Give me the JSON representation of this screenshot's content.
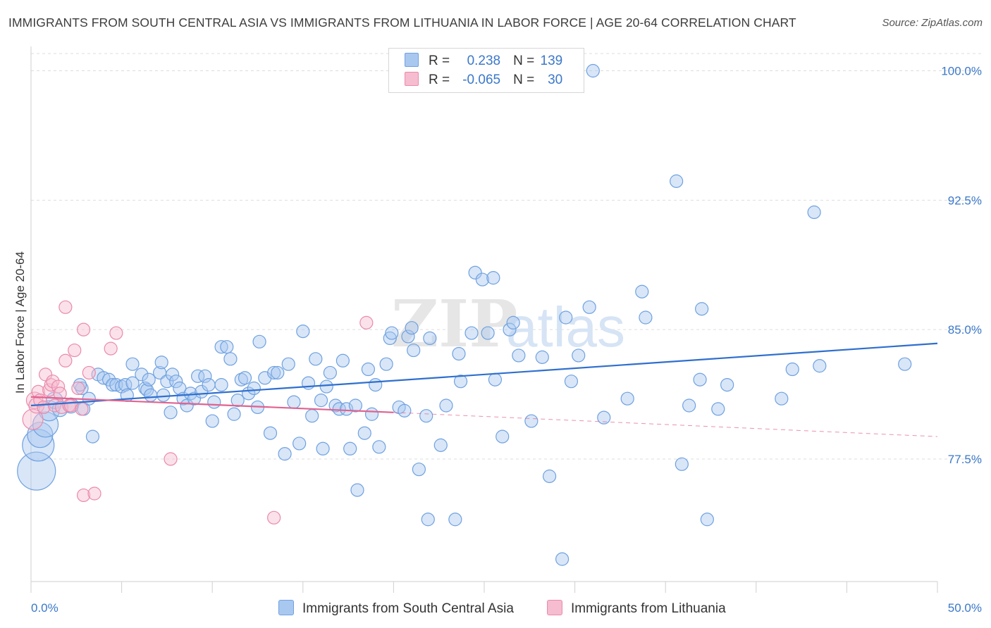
{
  "header": {
    "title": "IMMIGRANTS FROM SOUTH CENTRAL ASIA VS IMMIGRANTS FROM LITHUANIA IN LABOR FORCE | AGE 20-64 CORRELATION CHART",
    "source": "Source: ZipAtlas.com"
  },
  "colors": {
    "blue_fill": "#a9c8f0",
    "blue_stroke": "#6fa1e0",
    "blue_line": "#2f6fce",
    "pink_fill": "#f6bcd0",
    "pink_stroke": "#ea8aab",
    "pink_line": "#e0638f",
    "grid": "#dddddd",
    "tick_text": "#3b78c9"
  },
  "legend": {
    "rows": [
      {
        "r_label": "R =",
        "r_value": "0.238",
        "n_label": "N =",
        "n_value": "139"
      },
      {
        "r_label": "R =",
        "r_value": "-0.065",
        "n_label": "N =",
        "n_value": "30"
      }
    ]
  },
  "bottom_legend": {
    "blue_label": "Immigrants from South Central Asia",
    "pink_label": "Immigrants from Lithuania"
  },
  "watermark": {
    "part1": "ZIP",
    "part2": "atlas"
  },
  "chart_data": {
    "type": "scatter",
    "title": "IMMIGRANTS FROM SOUTH CENTRAL ASIA VS IMMIGRANTS FROM LITHUANIA IN LABOR FORCE | AGE 20-64 CORRELATION CHART",
    "xlabel": "",
    "ylabel": "In Labor Force | Age 20-64",
    "xlim": [
      0,
      50
    ],
    "ylim": [
      70.4,
      101.0
    ],
    "x_tick_labels": [
      "0.0%",
      "50.0%"
    ],
    "y_ticks": [
      77.5,
      85.0,
      92.5,
      100.0
    ],
    "y_tick_labels": [
      "77.5%",
      "85.0%",
      "92.5%",
      "100.0%"
    ],
    "grid": true,
    "legend_position": "top-center",
    "series": [
      {
        "name": "Immigrants from South Central Asia",
        "trend": {
          "x0": 0,
          "y0": 80.6,
          "x1": 50,
          "y1": 84.2
        },
        "points": [
          [
            0.3,
            76.8,
            3
          ],
          [
            0.4,
            78.3,
            2.5
          ],
          [
            0.5,
            78.9,
            2
          ],
          [
            0.8,
            79.5,
            2
          ],
          [
            1.0,
            80.3,
            1.6
          ],
          [
            1.3,
            80.9,
            1.3
          ],
          [
            1.6,
            80.4,
            1.2
          ],
          [
            2.2,
            80.6,
            1.2
          ],
          [
            2.8,
            81.6,
            1
          ],
          [
            2.9,
            80.4,
            1
          ],
          [
            2.7,
            81.8,
            1
          ],
          [
            3.2,
            81.0,
            1
          ],
          [
            3.4,
            78.8,
            1
          ],
          [
            3.7,
            82.4,
            1
          ],
          [
            4.0,
            82.2,
            1
          ],
          [
            4.3,
            82.1,
            1
          ],
          [
            4.5,
            81.8,
            1
          ],
          [
            4.7,
            81.8,
            1
          ],
          [
            5.0,
            81.7,
            1
          ],
          [
            5.2,
            81.8,
            1
          ],
          [
            5.3,
            81.2,
            1
          ],
          [
            5.6,
            81.9,
            1
          ],
          [
            5.6,
            83.0,
            1
          ],
          [
            6.1,
            82.4,
            1
          ],
          [
            6.3,
            81.6,
            1
          ],
          [
            6.4,
            81.5,
            1
          ],
          [
            6.5,
            82.1,
            1
          ],
          [
            6.6,
            81.2,
            1
          ],
          [
            7.1,
            82.5,
            1
          ],
          [
            7.2,
            83.1,
            1
          ],
          [
            7.3,
            81.2,
            1
          ],
          [
            7.5,
            82.0,
            1
          ],
          [
            7.7,
            80.2,
            1
          ],
          [
            7.8,
            82.4,
            1
          ],
          [
            8.0,
            82.0,
            1
          ],
          [
            8.2,
            81.6,
            1
          ],
          [
            8.4,
            81.0,
            1
          ],
          [
            8.6,
            80.6,
            1
          ],
          [
            8.8,
            81.3,
            1
          ],
          [
            9.0,
            81.0,
            1
          ],
          [
            9.2,
            82.3,
            1
          ],
          [
            9.4,
            81.4,
            1
          ],
          [
            9.6,
            82.3,
            1
          ],
          [
            9.8,
            81.8,
            1
          ],
          [
            10.0,
            79.7,
            1
          ],
          [
            10.1,
            80.8,
            1
          ],
          [
            10.5,
            81.8,
            1
          ],
          [
            10.5,
            84.0,
            1
          ],
          [
            10.8,
            84.0,
            1
          ],
          [
            11.0,
            83.3,
            1
          ],
          [
            11.2,
            80.1,
            1
          ],
          [
            11.4,
            80.9,
            1
          ],
          [
            11.6,
            82.1,
            1
          ],
          [
            11.8,
            82.2,
            1
          ],
          [
            12.0,
            81.3,
            1
          ],
          [
            12.3,
            81.6,
            1
          ],
          [
            12.5,
            80.5,
            1
          ],
          [
            12.6,
            84.3,
            1
          ],
          [
            12.9,
            82.2,
            1
          ],
          [
            13.2,
            79.0,
            1
          ],
          [
            13.4,
            82.5,
            1
          ],
          [
            13.6,
            82.5,
            1
          ],
          [
            14.0,
            77.8,
            1
          ],
          [
            14.2,
            83.0,
            1
          ],
          [
            14.5,
            80.8,
            1
          ],
          [
            14.8,
            78.4,
            1
          ],
          [
            15.0,
            84.9,
            1
          ],
          [
            15.3,
            81.9,
            1
          ],
          [
            15.5,
            80.0,
            1
          ],
          [
            15.7,
            83.3,
            1
          ],
          [
            16.0,
            80.9,
            1
          ],
          [
            16.1,
            78.1,
            1
          ],
          [
            16.3,
            81.7,
            1
          ],
          [
            16.5,
            82.5,
            1
          ],
          [
            16.8,
            80.6,
            1
          ],
          [
            17.0,
            80.4,
            1
          ],
          [
            17.2,
            83.2,
            1
          ],
          [
            17.4,
            80.4,
            1
          ],
          [
            17.6,
            78.1,
            1
          ],
          [
            17.9,
            80.6,
            1
          ],
          [
            18.0,
            75.7,
            1
          ],
          [
            18.4,
            79.0,
            1
          ],
          [
            18.6,
            82.7,
            1
          ],
          [
            18.8,
            80.1,
            1
          ],
          [
            19.0,
            81.8,
            1
          ],
          [
            19.2,
            78.2,
            1
          ],
          [
            19.6,
            83.0,
            1
          ],
          [
            19.8,
            84.5,
            1
          ],
          [
            19.9,
            84.8,
            1
          ],
          [
            20.3,
            80.5,
            1
          ],
          [
            20.6,
            80.3,
            1
          ],
          [
            20.8,
            84.6,
            1
          ],
          [
            21.0,
            85.1,
            1
          ],
          [
            21.1,
            83.8,
            1
          ],
          [
            21.4,
            76.9,
            1
          ],
          [
            21.8,
            80.0,
            1
          ],
          [
            21.9,
            74.0,
            1
          ],
          [
            22.0,
            84.5,
            1
          ],
          [
            22.6,
            78.3,
            1
          ],
          [
            22.9,
            80.6,
            1
          ],
          [
            23.4,
            74.0,
            1
          ],
          [
            23.6,
            83.6,
            1
          ],
          [
            23.7,
            82.0,
            1
          ],
          [
            24.3,
            84.8,
            1
          ],
          [
            24.5,
            88.3,
            1
          ],
          [
            24.9,
            87.9,
            1
          ],
          [
            25.2,
            84.8,
            1
          ],
          [
            25.5,
            88.0,
            1
          ],
          [
            25.6,
            82.1,
            1
          ],
          [
            26.0,
            78.8,
            1
          ],
          [
            26.4,
            85.0,
            1
          ],
          [
            26.6,
            85.4,
            1
          ],
          [
            26.9,
            83.5,
            1
          ],
          [
            27.6,
            79.7,
            1
          ],
          [
            28.2,
            83.4,
            1
          ],
          [
            28.6,
            76.5,
            1
          ],
          [
            29.3,
            71.7,
            1
          ],
          [
            29.5,
            85.7,
            1
          ],
          [
            29.8,
            82.0,
            1
          ],
          [
            30.2,
            83.5,
            1
          ],
          [
            30.8,
            86.3,
            1
          ],
          [
            31.6,
            79.9,
            1
          ],
          [
            32.9,
            81.0,
            1
          ],
          [
            33.7,
            87.2,
            1
          ],
          [
            33.9,
            85.7,
            1
          ],
          [
            35.6,
            93.6,
            1
          ],
          [
            35.9,
            77.2,
            1
          ],
          [
            36.3,
            80.6,
            1
          ],
          [
            36.9,
            82.1,
            1
          ],
          [
            37.3,
            74.0,
            1
          ],
          [
            37.9,
            80.4,
            1
          ],
          [
            38.4,
            81.8,
            1
          ],
          [
            41.4,
            81.0,
            1
          ],
          [
            42.0,
            82.7,
            1
          ],
          [
            43.2,
            91.8,
            1
          ],
          [
            43.5,
            82.9,
            1
          ],
          [
            48.2,
            83.0,
            1
          ],
          [
            37.0,
            86.2,
            1
          ],
          [
            31.0,
            100.0,
            1
          ]
        ]
      },
      {
        "name": "Immigrants from Lithuania",
        "trend": {
          "x0": 0,
          "y0": 81.1,
          "x1": 20.0,
          "y1": 80.2,
          "dash_x1": 50,
          "dash_y1": 78.8
        },
        "points": [
          [
            0.1,
            79.8,
            1.6
          ],
          [
            0.2,
            80.9,
            1.3
          ],
          [
            0.3,
            80.6,
            1.2
          ],
          [
            0.4,
            81.4,
            1
          ],
          [
            0.5,
            80.9,
            1
          ],
          [
            0.7,
            80.5,
            1
          ],
          [
            0.8,
            82.4,
            1
          ],
          [
            1.0,
            81.5,
            1
          ],
          [
            1.1,
            81.8,
            1
          ],
          [
            1.2,
            82.0,
            1
          ],
          [
            1.3,
            80.6,
            1
          ],
          [
            1.5,
            81.7,
            1
          ],
          [
            1.6,
            81.3,
            1
          ],
          [
            1.7,
            80.5,
            1
          ],
          [
            1.9,
            86.3,
            1
          ],
          [
            1.9,
            83.2,
            1
          ],
          [
            2.1,
            80.6,
            1
          ],
          [
            2.2,
            80.6,
            1
          ],
          [
            2.4,
            83.8,
            1
          ],
          [
            2.6,
            81.6,
            1
          ],
          [
            2.8,
            80.4,
            1
          ],
          [
            2.9,
            85.0,
            1
          ],
          [
            2.9,
            75.4,
            1
          ],
          [
            3.2,
            82.5,
            1
          ],
          [
            3.5,
            75.5,
            1
          ],
          [
            4.4,
            83.9,
            1
          ],
          [
            4.7,
            84.8,
            1
          ],
          [
            7.7,
            77.5,
            1
          ],
          [
            13.4,
            74.1,
            1
          ],
          [
            18.5,
            85.4,
            1
          ]
        ]
      }
    ]
  }
}
